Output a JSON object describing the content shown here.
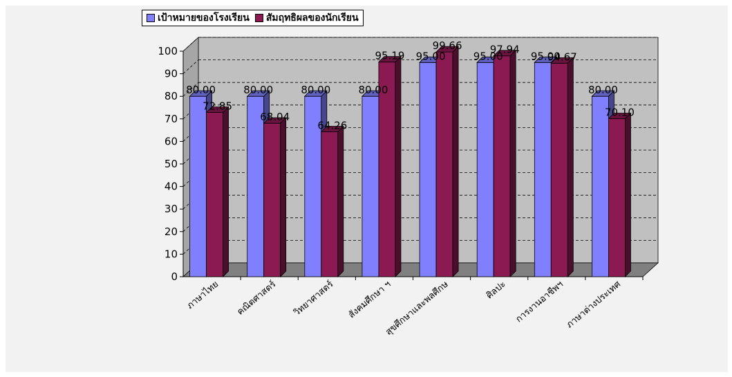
{
  "chart_data": {
    "type": "bar",
    "categories": [
      "ภาษาไทย",
      "คณิตศาสตร์",
      "วิทยาศาสตร์",
      "สังคมศึกษา ฯ",
      "สุขศึกษาและพลศึกษ",
      "ศิลปะ",
      "การงานอาชีพฯ",
      "ภาษาต่างประเทศ"
    ],
    "series": [
      {
        "name": "เป้าหมายของโรงเรียน",
        "values": [
          80.0,
          80.0,
          80.0,
          80.0,
          95.0,
          95.0,
          95.0,
          80.0
        ],
        "labels": [
          "80.00",
          "80.00",
          "80.00",
          "80.00",
          "95.00",
          "95.00",
          "95.00",
          "80.00"
        ]
      },
      {
        "name": "สัมฤทธิผลของนักเรียน",
        "values": [
          72.85,
          68.04,
          64.26,
          95.19,
          99.66,
          97.94,
          94.67,
          70.1
        ],
        "labels": [
          "72.85",
          "68.04",
          "64.26",
          "95.19",
          "99.66",
          "97.94",
          "94.67",
          "70.10"
        ]
      }
    ],
    "yticks": [
      "0",
      "10",
      "20",
      "30",
      "40",
      "50",
      "60",
      "70",
      "80",
      "90",
      "100"
    ],
    "ylim": [
      0,
      100
    ],
    "grid": true,
    "legend_position": "top",
    "colors": {
      "series1": "#8080ff",
      "series2": "#8b1a52",
      "wall": "#c0c0c0",
      "floor": "#808080"
    }
  }
}
